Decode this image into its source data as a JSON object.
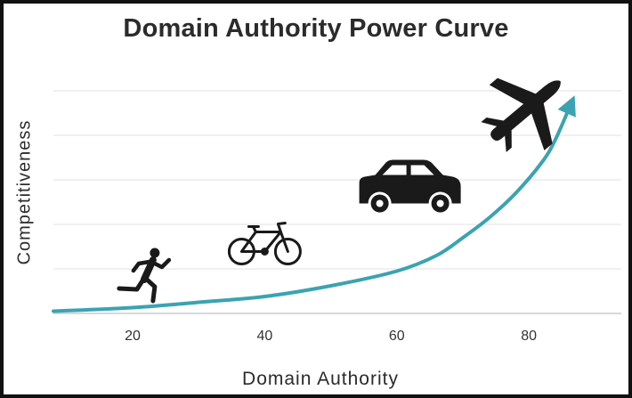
{
  "chart_data": {
    "type": "line",
    "title": "Domain Authority Power Curve",
    "xlabel": "Domain Authority",
    "ylabel": "Competitiveness",
    "x_ticks": [
      20,
      40,
      60,
      80
    ],
    "xlim": [
      8,
      94
    ],
    "ylim": [
      0,
      5
    ],
    "grid": true,
    "y_tick_labels_shown": false,
    "curve_color": "#3ba3b2",
    "x": [
      8,
      20,
      30,
      40,
      50,
      60,
      66,
      70,
      74,
      78,
      82,
      84,
      86.5
    ],
    "y": [
      0.05,
      0.13,
      0.25,
      0.38,
      0.62,
      0.95,
      1.3,
      1.7,
      2.15,
      2.7,
      3.4,
      3.9,
      4.75
    ],
    "icons": [
      {
        "name": "runner-icon",
        "x": 22,
        "y": 0.8
      },
      {
        "name": "bicycle-icon",
        "x": 40,
        "y": 1.55
      },
      {
        "name": "car-icon",
        "x": 62,
        "y": 2.75
      },
      {
        "name": "airplane-icon",
        "x": 79,
        "y": 4.5
      }
    ]
  }
}
